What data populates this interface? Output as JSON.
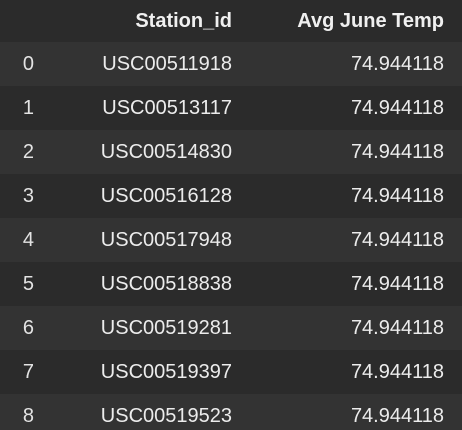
{
  "table": {
    "columns": {
      "index": "",
      "station_id": "Station_id",
      "avg_june_temp": "Avg June Temp"
    },
    "rows": [
      {
        "index": "0",
        "station_id": "USC00511918",
        "avg_june_temp": "74.944118"
      },
      {
        "index": "1",
        "station_id": "USC00513117",
        "avg_june_temp": "74.944118"
      },
      {
        "index": "2",
        "station_id": "USC00514830",
        "avg_june_temp": "74.944118"
      },
      {
        "index": "3",
        "station_id": "USC00516128",
        "avg_june_temp": "74.944118"
      },
      {
        "index": "4",
        "station_id": "USC00517948",
        "avg_june_temp": "74.944118"
      },
      {
        "index": "5",
        "station_id": "USC00518838",
        "avg_june_temp": "74.944118"
      },
      {
        "index": "6",
        "station_id": "USC00519281",
        "avg_june_temp": "74.944118"
      },
      {
        "index": "7",
        "station_id": "USC00519397",
        "avg_june_temp": "74.944118"
      },
      {
        "index": "8",
        "station_id": "USC00519523",
        "avg_june_temp": "74.944118"
      }
    ]
  },
  "colors": {
    "background": "#2b2b2b",
    "stripe": "#333333",
    "text": "#ececec"
  }
}
